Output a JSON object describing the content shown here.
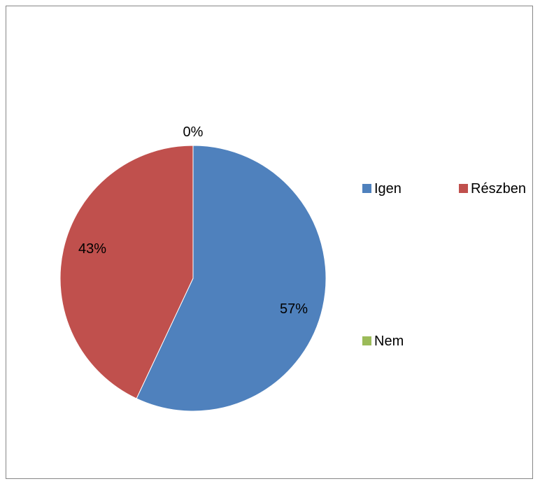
{
  "chart_data": {
    "type": "pie",
    "categories": [
      "Igen",
      "Részben",
      "Nem"
    ],
    "values": [
      57,
      43,
      0
    ],
    "value_labels": [
      "57%",
      "43%",
      "0%"
    ],
    "colors": [
      "#4F81BD",
      "#C0504D",
      "#9BBB59"
    ],
    "start_angle_deg": 0,
    "direction": "clockwise",
    "legend": {
      "placement": "right",
      "entries": [
        "Igen",
        "Részben",
        "Nem"
      ]
    }
  }
}
